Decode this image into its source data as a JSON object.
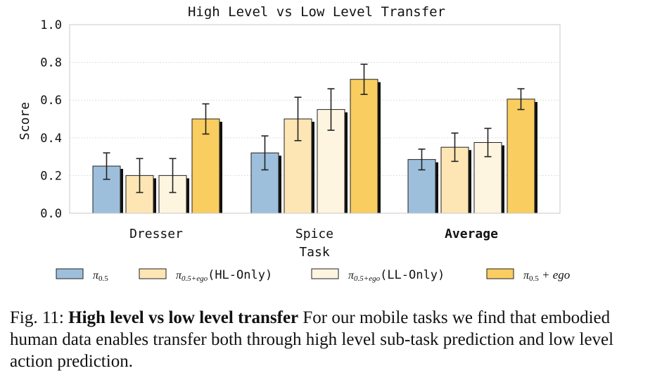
{
  "chart_data": {
    "type": "bar",
    "title": "High Level vs Low Level Transfer",
    "xlabel": "Task",
    "ylabel": "Score",
    "ylim": [
      0,
      1.0
    ],
    "yticks": [
      "0.0",
      "0.2",
      "0.4",
      "0.6",
      "0.8",
      "1.0"
    ],
    "grid": true,
    "legend_placement": "bottom",
    "categories": [
      "Dresser",
      "Spice",
      "Average"
    ],
    "bold_categories": [
      "Average"
    ],
    "series": [
      {
        "name": "π0.5",
        "base": "π",
        "sub": "0.5",
        "suffix": "",
        "color": "#9dbfdc",
        "values": [
          0.25,
          0.32,
          0.285
        ],
        "err": [
          0.07,
          0.09,
          0.055
        ]
      },
      {
        "name": "π0.5+ego(HL-Only)",
        "base": "π",
        "sub": "0.5+ego",
        "suffix": "(HL-Only)",
        "color": "#fde6b4",
        "values": [
          0.2,
          0.5,
          0.35
        ],
        "err": [
          0.09,
          0.115,
          0.075
        ]
      },
      {
        "name": "π0.5+ego(LL-Only)",
        "base": "π",
        "sub": "0.5+ego",
        "suffix": "(LL-Only)",
        "color": "#fef5e1",
        "values": [
          0.2,
          0.55,
          0.375
        ],
        "err": [
          0.09,
          0.11,
          0.075
        ]
      },
      {
        "name": "π0.5+ego",
        "base": "π",
        "sub": "0.5",
        "suffix": " + ego",
        "color": "#f9cd5f",
        "values": [
          0.5,
          0.71,
          0.605
        ],
        "err": [
          0.08,
          0.08,
          0.055
        ]
      }
    ]
  },
  "caption": {
    "label": "Fig. 11:",
    "bold": "High level vs low level transfer",
    "text": "For our mobile tasks we find that embodied human data enables transfer both through high level sub-task prediction and low level action prediction."
  }
}
